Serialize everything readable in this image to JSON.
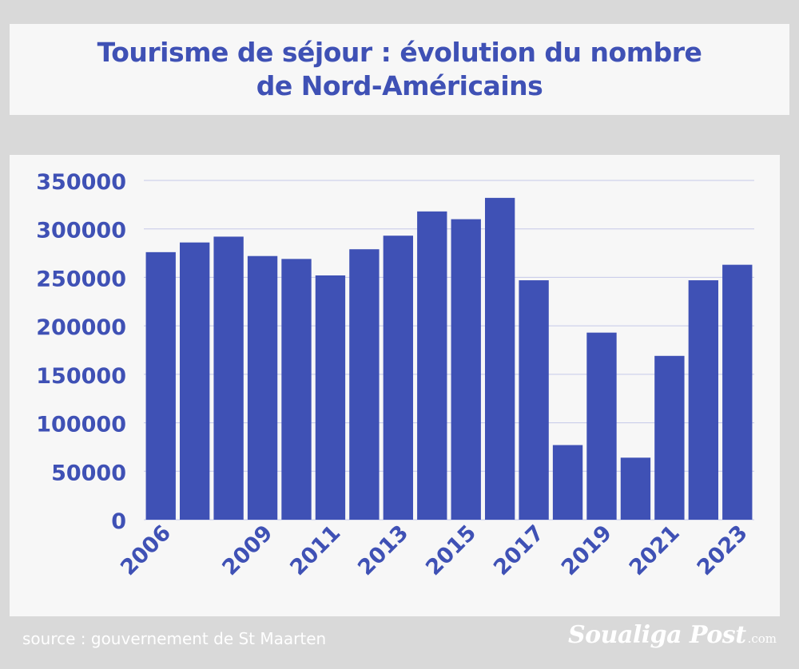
{
  "title": {
    "line1": "Tourisme de séjour : évolution du nombre",
    "line2": "de Nord-Américains"
  },
  "source": "source : gouvernement de St Maarten",
  "logo": {
    "name": "Soualiga Post",
    "suffix": ".com"
  },
  "colors": {
    "bar": "#3f51b5",
    "text": "#3f51b5",
    "grid": "#c5c8e8",
    "background": "#d9d9d9",
    "panel": "#f7f7f7"
  },
  "chart_data": {
    "type": "bar",
    "categories": [
      "2006",
      "2007",
      "2008",
      "2009",
      "2010",
      "2011",
      "2012",
      "2013",
      "2014",
      "2015",
      "2016",
      "2017",
      "2018",
      "2019",
      "2020",
      "2021",
      "2022",
      "2023"
    ],
    "x_tick_labels": [
      "2006",
      "",
      "",
      "2009",
      "",
      "2011",
      "",
      "2013",
      "",
      "2015",
      "",
      "2017",
      "",
      "2019",
      "",
      "2021",
      "",
      "2023"
    ],
    "values": [
      276000,
      286000,
      292000,
      272000,
      269000,
      252000,
      279000,
      293000,
      318000,
      310000,
      332000,
      247000,
      77000,
      193000,
      64000,
      169000,
      247000,
      263000
    ],
    "title": "Tourisme de séjour : évolution du nombre de Nord-Américains",
    "xlabel": "",
    "ylabel": "",
    "ylim": [
      0,
      350000
    ],
    "yticks": [
      0,
      50000,
      100000,
      150000,
      200000,
      250000,
      300000,
      350000
    ],
    "grid": true,
    "legend": "none"
  }
}
